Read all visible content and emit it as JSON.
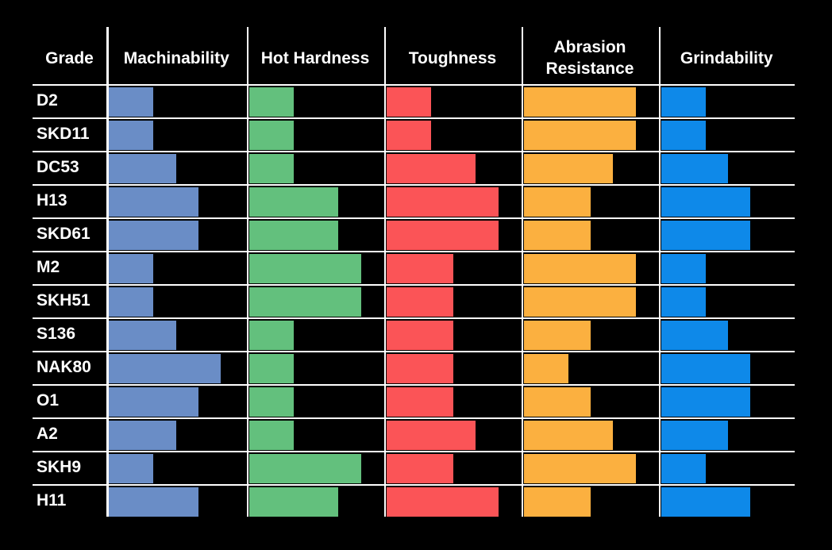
{
  "chart_data": {
    "type": "bar",
    "orientation": "horizontal",
    "grade_header": "Grade",
    "categories": [
      "D2",
      "SKD11",
      "DC53",
      "H13",
      "SKD61",
      "M2",
      "SKH51",
      "S136",
      "NAK80",
      "O1",
      "A2",
      "SKH9",
      "H11"
    ],
    "series": [
      {
        "name": "Machinability",
        "color": "#6A8DC6",
        "values": [
          2,
          2,
          3,
          4,
          4,
          2,
          2,
          3,
          5,
          4,
          3,
          2,
          4
        ]
      },
      {
        "name": "Hot Hardness",
        "color": "#63C07D",
        "values": [
          2,
          2,
          2,
          4,
          4,
          5,
          5,
          2,
          2,
          2,
          2,
          5,
          4
        ]
      },
      {
        "name": "Toughness",
        "color": "#FB5457",
        "values": [
          2,
          2,
          4,
          5,
          5,
          3,
          3,
          3,
          3,
          3,
          4,
          3,
          5
        ]
      },
      {
        "name": "Abrasion Resistance",
        "color": "#FBB040",
        "values": [
          5,
          5,
          4,
          3,
          3,
          5,
          5,
          3,
          2,
          3,
          4,
          5,
          3
        ]
      },
      {
        "name": "Grindability",
        "color": "#0E89E9",
        "values": [
          2,
          2,
          3,
          4,
          4,
          2,
          2,
          3,
          4,
          4,
          3,
          2,
          4
        ]
      }
    ],
    "value_scale": {
      "min": 0,
      "max": 5
    },
    "background": "#000000",
    "grid_color": "#FFFFFF",
    "text_color": "#FFFFFF"
  }
}
